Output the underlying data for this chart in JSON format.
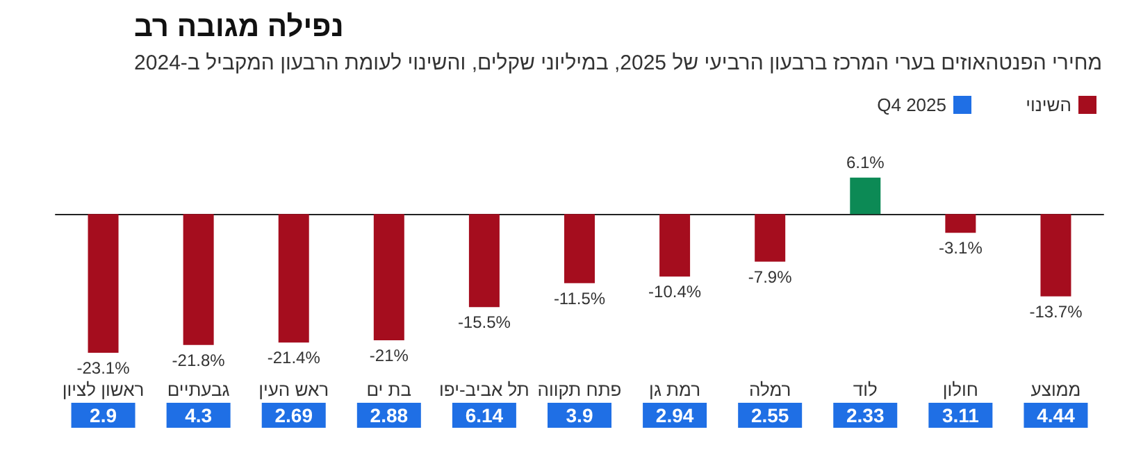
{
  "chart_data": [
    {
      "type": "bar",
      "title": "נפילה מגובה רב",
      "subtitle": "מחירי הפנטהאוזים בערי המרכז ברבעון הרביעי של 2025, במיליוני שקלים, והשינוי לעומת הרבעון המקביל ב-2024",
      "categories": [
        "ראשון לציון",
        "גבעתיים",
        "ראש העין",
        "בת ים",
        "תל אביב-יפו",
        "פתח תקווה",
        "רמת גן",
        "רמלה",
        "לוד",
        "חולון",
        "ממוצע"
      ],
      "series": [
        {
          "name": "השינוי",
          "color": "#a50d1e",
          "colors": [
            "#a50d1e",
            "#a50d1e",
            "#a50d1e",
            "#a50d1e",
            "#a50d1e",
            "#a50d1e",
            "#a50d1e",
            "#a50d1e",
            "#0c8a55",
            "#a50d1e",
            "#a50d1e"
          ],
          "values": [
            -23.1,
            -21.8,
            -21.4,
            -21,
            -15.5,
            -11.5,
            -10.4,
            -7.9,
            6.1,
            -3.1,
            -13.7
          ],
          "value_labels": [
            "-23.1%",
            "-21.8%",
            "-21.4%",
            "-21%",
            "-15.5%",
            "-11.5%",
            "-10.4%",
            "-7.9%",
            "6.1%",
            "-3.1%",
            "-13.7%"
          ]
        }
      ],
      "legend": "top right"
    },
    {
      "type": "other",
      "categories": [
        null,
        null,
        null,
        null,
        null,
        null,
        null,
        null,
        null,
        null,
        null
      ],
      "series": [
        {
          "name": "Q4 2025",
          "color": "#1f6fe5",
          "values": [
            2.9,
            4.3,
            2.69,
            2.88,
            6.14,
            3.9,
            2.94,
            2.55,
            2.33,
            3.11,
            4.44
          ]
        }
      ],
      "data_labels": true,
      "legend": "top right"
    }
  ]
}
